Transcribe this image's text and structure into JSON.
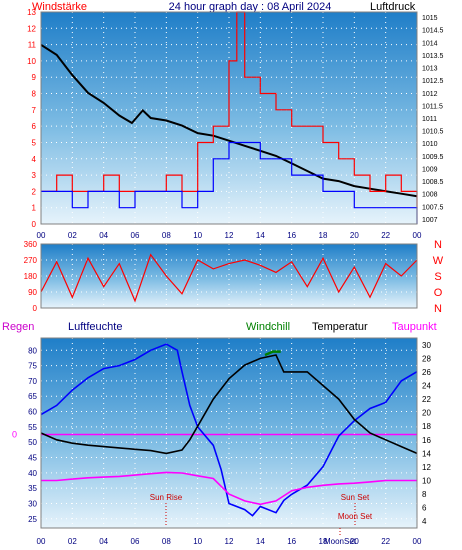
{
  "header": {
    "left": "Windstärke",
    "title": "24 hour graph day : 08 April 2024",
    "right": "Luftdruck"
  },
  "colors": {
    "wind": "#ff0000",
    "gust": "#0000ff",
    "pressure": "#000000",
    "humidity": "#0000ff",
    "temperature": "#000000",
    "windchill": "#008000",
    "dewpoint": "#ff00ff",
    "axis_label": "#ff0000",
    "time_label": "#000080",
    "grid": "#ffffff"
  },
  "chart_data": [
    {
      "type": "line",
      "y_left": {
        "ticks": [
          "0",
          "1",
          "2",
          "3",
          "4",
          "5",
          "6",
          "7",
          "8",
          "9",
          "10",
          "11",
          "12",
          "13"
        ],
        "range": [
          0,
          13
        ]
      },
      "y_right": {
        "ticks": [
          "1007",
          "1007.5",
          "1008",
          "1008.5",
          "1009",
          "1009.5",
          "1010",
          "1010.5",
          "1011",
          "1011.5",
          "1012",
          "1012.5",
          "1013",
          "1013.5",
          "1014",
          "1014.5",
          "1015"
        ],
        "range": [
          1006.8,
          1015.2
        ]
      },
      "x": {
        "ticks": [
          "00",
          "02",
          "04",
          "06",
          "08",
          "10",
          "12",
          "14",
          "16",
          "18",
          "20",
          "22",
          "00"
        ],
        "range": [
          0,
          24
        ]
      },
      "series": [
        {
          "key": "pressure",
          "color": "#000000",
          "points": [
            [
              0,
              1013.9
            ],
            [
              1,
              1013.5
            ],
            [
              2,
              1012.7
            ],
            [
              3,
              1012.0
            ],
            [
              4,
              1011.6
            ],
            [
              5,
              1011.1
            ],
            [
              5.8,
              1010.8
            ],
            [
              6.5,
              1011.3
            ],
            [
              7,
              1011.0
            ],
            [
              8,
              1010.9
            ],
            [
              9,
              1010.7
            ],
            [
              10,
              1010.4
            ],
            [
              11,
              1010.3
            ],
            [
              12,
              1010.1
            ],
            [
              13,
              1009.9
            ],
            [
              14,
              1009.7
            ],
            [
              15,
              1009.5
            ],
            [
              16,
              1009.2
            ],
            [
              17,
              1008.9
            ],
            [
              18,
              1008.6
            ],
            [
              19,
              1008.5
            ],
            [
              20,
              1008.3
            ],
            [
              21,
              1008.2
            ],
            [
              22,
              1008.1
            ],
            [
              23,
              1008.0
            ],
            [
              24,
              1007.9
            ]
          ]
        },
        {
          "key": "wind",
          "color": "#ff0000",
          "points": [
            [
              0,
              2
            ],
            [
              1,
              3
            ],
            [
              2,
              2
            ],
            [
              3,
              2
            ],
            [
              4,
              3
            ],
            [
              5,
              2
            ],
            [
              6,
              2
            ],
            [
              7,
              2
            ],
            [
              8,
              3
            ],
            [
              9,
              2
            ],
            [
              10,
              5
            ],
            [
              11,
              6
            ],
            [
              12,
              10
            ],
            [
              12.5,
              13
            ],
            [
              13,
              9
            ],
            [
              14,
              8
            ],
            [
              15,
              7
            ],
            [
              16,
              6
            ],
            [
              17,
              6
            ],
            [
              18,
              5
            ],
            [
              19,
              4
            ],
            [
              20,
              3
            ],
            [
              21,
              2
            ],
            [
              22,
              3
            ],
            [
              23,
              2
            ],
            [
              24,
              1
            ]
          ]
        },
        {
          "key": "gust",
          "color": "#0000ff",
          "points": [
            [
              0,
              2
            ],
            [
              1,
              2
            ],
            [
              2,
              1
            ],
            [
              3,
              2
            ],
            [
              4,
              2
            ],
            [
              5,
              1
            ],
            [
              6,
              2
            ],
            [
              7,
              2
            ],
            [
              8,
              2
            ],
            [
              9,
              1
            ],
            [
              10,
              2
            ],
            [
              11,
              4
            ],
            [
              12,
              5
            ],
            [
              13,
              5
            ],
            [
              14,
              4
            ],
            [
              15,
              4
            ],
            [
              16,
              3
            ],
            [
              17,
              3
            ],
            [
              18,
              2
            ],
            [
              19,
              2
            ],
            [
              20,
              1
            ],
            [
              21,
              1
            ],
            [
              22,
              1
            ],
            [
              23,
              1
            ],
            [
              24,
              0
            ]
          ]
        }
      ]
    },
    {
      "type": "line",
      "y_left": {
        "ticks": [
          "0",
          "90",
          "180",
          "270",
          "360"
        ],
        "range": [
          0,
          360
        ]
      },
      "y_right": {
        "ticks": [
          "N",
          "W",
          "S",
          "O",
          "N"
        ]
      },
      "x": {
        "range": [
          0,
          24
        ]
      },
      "series": [
        {
          "key": "wind_direction",
          "color": "#ff0000",
          "points": [
            [
              0,
              90
            ],
            [
              1,
              260
            ],
            [
              2,
              60
            ],
            [
              3,
              280
            ],
            [
              4,
              120
            ],
            [
              5,
              250
            ],
            [
              6,
              40
            ],
            [
              7,
              300
            ],
            [
              8,
              180
            ],
            [
              9,
              80
            ],
            [
              10,
              270
            ],
            [
              11,
              220
            ],
            [
              12,
              250
            ],
            [
              13,
              270
            ],
            [
              14,
              240
            ],
            [
              15,
              200
            ],
            [
              16,
              260
            ],
            [
              17,
              120
            ],
            [
              18,
              280
            ],
            [
              19,
              90
            ],
            [
              20,
              230
            ],
            [
              21,
              60
            ],
            [
              22,
              250
            ],
            [
              23,
              180
            ],
            [
              24,
              270
            ]
          ]
        }
      ]
    },
    {
      "type": "line",
      "labels": {
        "regen": "Regen",
        "humidity": "Luftfeuchte",
        "windchill": "Windchill",
        "temperature": "Temperatur",
        "dewpoint": "Taupunkt"
      },
      "y_left": {
        "ticks": [
          "25",
          "30",
          "35",
          "40",
          "45",
          "50",
          "55",
          "60",
          "65",
          "70",
          "75",
          "80"
        ],
        "range": [
          22,
          84
        ],
        "zero_label": "0"
      },
      "y_right": {
        "ticks": [
          "4",
          "6",
          "8",
          "10",
          "12",
          "14",
          "16",
          "18",
          "20",
          "22",
          "24",
          "26",
          "28",
          "30"
        ],
        "range": [
          3,
          31
        ]
      },
      "x": {
        "ticks": [
          "00",
          "02",
          "04",
          "06",
          "08",
          "10",
          "12",
          "14",
          "16",
          "18",
          "20",
          "22",
          "00"
        ],
        "range": [
          0,
          24
        ]
      },
      "annotations": {
        "sunrise": "Sun Rise",
        "sunset": "Sun Set",
        "moonset_upper": "Moon Set",
        "moonset_lower": "MoonSet"
      },
      "series": [
        {
          "key": "humidity",
          "color": "#0000ff",
          "axis": "left",
          "points": [
            [
              0,
              59
            ],
            [
              1,
              62
            ],
            [
              2,
              67
            ],
            [
              3,
              71
            ],
            [
              4,
              74
            ],
            [
              5,
              75
            ],
            [
              6,
              77
            ],
            [
              7,
              80
            ],
            [
              8,
              82
            ],
            [
              8.7,
              80
            ],
            [
              9,
              73
            ],
            [
              9.5,
              62
            ],
            [
              10,
              55
            ],
            [
              11,
              49
            ],
            [
              11.5,
              41
            ],
            [
              12,
              30
            ],
            [
              13,
              28
            ],
            [
              13.5,
              26
            ],
            [
              14,
              29
            ],
            [
              15,
              27
            ],
            [
              15.5,
              31
            ],
            [
              16,
              33
            ],
            [
              17,
              36
            ],
            [
              18,
              42
            ],
            [
              19,
              52
            ],
            [
              20,
              57
            ],
            [
              21,
              61
            ],
            [
              22,
              63
            ],
            [
              23,
              70
            ],
            [
              24,
              73
            ]
          ]
        },
        {
          "key": "temperature",
          "color": "#000000",
          "axis": "right",
          "points": [
            [
              0,
              17
            ],
            [
              1,
              16
            ],
            [
              2,
              15.5
            ],
            [
              3,
              15.2
            ],
            [
              4,
              15
            ],
            [
              5,
              14.8
            ],
            [
              6,
              14.6
            ],
            [
              7,
              14.4
            ],
            [
              8,
              14
            ],
            [
              9,
              14.5
            ],
            [
              9.5,
              16
            ],
            [
              10,
              18
            ],
            [
              11,
              22
            ],
            [
              12,
              25
            ],
            [
              13,
              27
            ],
            [
              14,
              28
            ],
            [
              15,
              28.5
            ],
            [
              15.5,
              26
            ],
            [
              16,
              26
            ],
            [
              17,
              26
            ],
            [
              18,
              24
            ],
            [
              19,
              22
            ],
            [
              20,
              19
            ],
            [
              21,
              17
            ],
            [
              22,
              16
            ],
            [
              23,
              15
            ],
            [
              24,
              14
            ]
          ]
        },
        {
          "key": "windchill",
          "color": "#008000",
          "axis": "right",
          "points": [
            [
              14.3,
              28.5
            ],
            [
              14.8,
              29
            ],
            [
              15.3,
              29
            ]
          ]
        },
        {
          "key": "dewpoint",
          "color": "#ff00ff",
          "axis": "right",
          "points": [
            [
              0,
              10
            ],
            [
              1,
              10
            ],
            [
              2,
              10.2
            ],
            [
              3,
              10.4
            ],
            [
              4,
              10.5
            ],
            [
              5,
              10.6
            ],
            [
              6,
              10.8
            ],
            [
              7,
              11
            ],
            [
              8,
              11.2
            ],
            [
              9,
              11.1
            ],
            [
              10,
              10.7
            ],
            [
              11,
              10.3
            ],
            [
              12,
              8
            ],
            [
              13,
              7
            ],
            [
              14,
              6.5
            ],
            [
              15,
              7
            ],
            [
              16,
              8.5
            ],
            [
              17,
              9
            ],
            [
              18,
              9.3
            ],
            [
              19,
              9.5
            ],
            [
              20,
              9.6
            ],
            [
              21,
              9.8
            ],
            [
              22,
              10
            ],
            [
              23,
              10
            ],
            [
              24,
              10
            ]
          ]
        }
      ]
    }
  ]
}
